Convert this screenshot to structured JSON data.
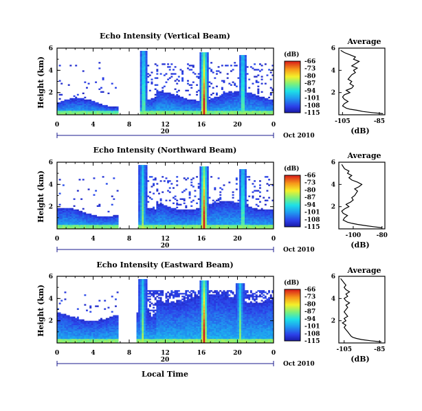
{
  "figure": {
    "date_label": "Oct 2010",
    "day_label": "20",
    "xlabel": "Local Time",
    "ylabel": "Height (km)",
    "avg_title": "Average",
    "avg_xlabel": "(dB)",
    "cbar_label": "(dB)"
  },
  "chart_data": [
    {
      "type": "heatmap",
      "title": "Echo Intensity (Vertical Beam)",
      "xlabel": "Local Time",
      "ylabel": "Height (km)",
      "xticks": [
        "0",
        "4",
        "8",
        "12",
        "16",
        "20",
        "0"
      ],
      "xlim": [
        0,
        24
      ],
      "yticks": [
        "2",
        "4",
        "6"
      ],
      "ylim": [
        0,
        6
      ],
      "colorbar": {
        "label": "(dB)",
        "ticks": [
          "-66",
          "-73",
          "-80",
          "-87",
          "-94",
          "-101",
          "-108",
          "-115"
        ],
        "range": [
          -115,
          -66
        ]
      },
      "data_gap_hours": [
        6.8,
        9.2
      ],
      "bright_columns_hours": [
        9.6,
        16.3,
        20.6
      ],
      "average_profile": {
        "title": "Average",
        "xlabel": "(dB)",
        "xticks": [
          "-105",
          "-85"
        ],
        "xlim": [
          -107,
          -82
        ],
        "ylim": [
          0,
          6
        ],
        "height_km": [
          0.1,
          0.2,
          0.3,
          0.4,
          0.5,
          0.6,
          0.8,
          1.0,
          1.2,
          1.4,
          1.6,
          1.8,
          2.0,
          2.2,
          2.4,
          2.6,
          2.8,
          3.0,
          3.2,
          3.4,
          3.6,
          3.8,
          4.0,
          4.2,
          4.4,
          4.6,
          4.8,
          5.0,
          5.2,
          5.4,
          5.6,
          5.8
        ],
        "intensity_db": [
          -83,
          -89,
          -94,
          -97,
          -101,
          -103,
          -105,
          -104,
          -102,
          -104,
          -105,
          -104,
          -101,
          -103,
          -100,
          -99,
          -101,
          -100,
          -102,
          -101,
          -100,
          -98,
          -99,
          -97,
          -100,
          -98,
          -96,
          -99,
          -98,
          -101,
          -104,
          -106
        ]
      }
    },
    {
      "type": "heatmap",
      "title": "Echo Intensity (Northward Beam)",
      "xlabel": "Local Time",
      "ylabel": "Height (km)",
      "xticks": [
        "0",
        "4",
        "8",
        "12",
        "16",
        "20",
        "0"
      ],
      "xlim": [
        0,
        24
      ],
      "yticks": [
        "2",
        "4",
        "6"
      ],
      "ylim": [
        0,
        6
      ],
      "colorbar": {
        "label": "(dB)",
        "ticks": [
          "-66",
          "-73",
          "-80",
          "-87",
          "-94",
          "-101",
          "-108",
          "-115"
        ],
        "range": [
          -115,
          -66
        ]
      },
      "data_gap_hours": [
        6.8,
        9.0
      ],
      "bright_columns_hours": [
        9.5,
        16.3,
        20.6
      ],
      "average_profile": {
        "title": "Average",
        "xlabel": "(dB)",
        "xticks": [
          "-100",
          "-80"
        ],
        "xlim": [
          -110,
          -78
        ],
        "ylim": [
          0,
          6
        ],
        "height_km": [
          0.1,
          0.2,
          0.3,
          0.4,
          0.5,
          0.6,
          0.8,
          1.0,
          1.2,
          1.4,
          1.6,
          1.8,
          2.0,
          2.2,
          2.4,
          2.6,
          2.8,
          3.0,
          3.2,
          3.4,
          3.6,
          3.8,
          4.0,
          4.2,
          4.4,
          4.6,
          4.8,
          5.0,
          5.2,
          5.4,
          5.6,
          5.8
        ],
        "intensity_db": [
          -80,
          -86,
          -92,
          -97,
          -101,
          -104,
          -107,
          -106,
          -104,
          -107,
          -108,
          -106,
          -103,
          -105,
          -102,
          -100,
          -101,
          -99,
          -98,
          -97,
          -99,
          -96,
          -94,
          -97,
          -101,
          -103,
          -101,
          -104,
          -103,
          -106,
          -107,
          -108
        ]
      }
    },
    {
      "type": "heatmap",
      "title": "Echo Intensity (Eastward Beam)",
      "xlabel": "Local Time",
      "ylabel": "Height (km)",
      "xticks": [
        "0",
        "4",
        "8",
        "12",
        "16",
        "20",
        "0"
      ],
      "xlim": [
        0,
        24
      ],
      "yticks": [
        "2",
        "4",
        "6"
      ],
      "ylim": [
        0,
        6
      ],
      "colorbar": {
        "label": "(dB)",
        "ticks": [
          "-66",
          "-73",
          "-80",
          "-87",
          "-94",
          "-101",
          "-108",
          "-115"
        ],
        "range": [
          -115,
          -66
        ]
      },
      "data_gap_hours": [
        6.8,
        8.8
      ],
      "bright_columns_hours": [
        9.5,
        16.3,
        20.3
      ],
      "average_profile": {
        "title": "Average",
        "xlabel": "(dB)",
        "xticks": [
          "-105",
          "-85"
        ],
        "xlim": [
          -108,
          -82
        ],
        "ylim": [
          0,
          6
        ],
        "height_km": [
          0.1,
          0.2,
          0.3,
          0.4,
          0.5,
          0.6,
          0.8,
          1.0,
          1.2,
          1.4,
          1.6,
          1.8,
          2.0,
          2.2,
          2.4,
          2.6,
          2.8,
          3.0,
          3.2,
          3.4,
          3.6,
          3.8,
          4.0,
          4.2,
          4.4,
          4.6,
          4.8,
          5.0,
          5.2,
          5.4,
          5.6,
          5.8
        ],
        "intensity_db": [
          -84,
          -90,
          -95,
          -98,
          -100,
          -101,
          -102,
          -103,
          -104,
          -105,
          -104,
          -106,
          -104,
          -105,
          -103,
          -104,
          -105,
          -104,
          -103,
          -104,
          -102,
          -104,
          -105,
          -103,
          -104,
          -102,
          -104,
          -105,
          -104,
          -105,
          -106,
          -107
        ]
      }
    }
  ]
}
